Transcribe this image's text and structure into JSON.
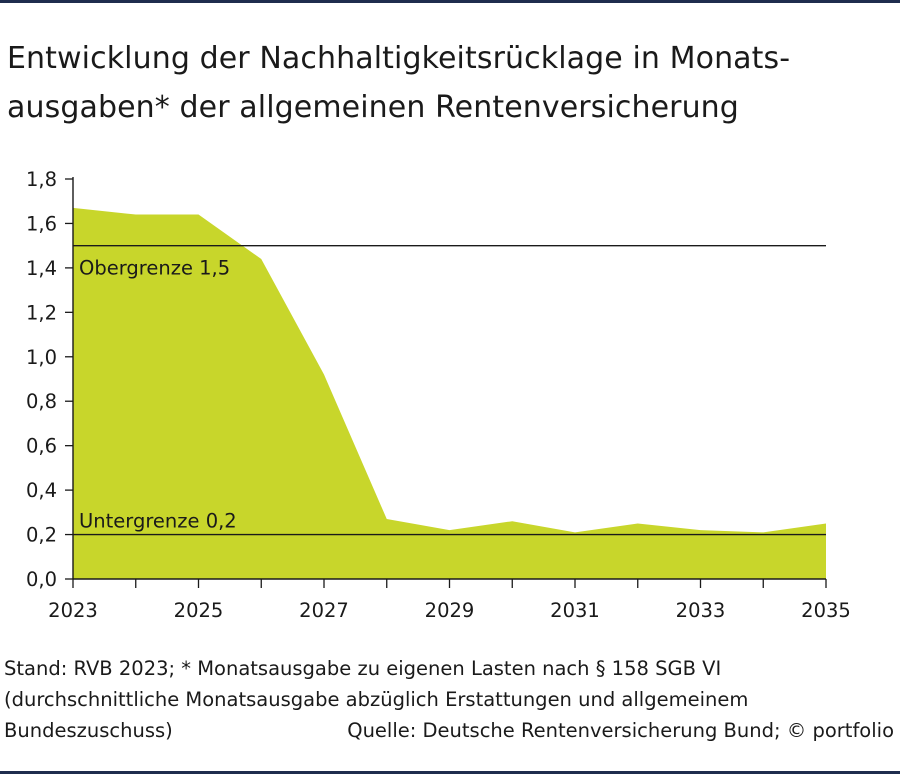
{
  "title_lines": [
    "Entwicklung der Nachhaltigkeitsrücklage in Monats-",
    "ausgaben* der allgemeinen Rentenversicherung"
  ],
  "chart_data": {
    "type": "area",
    "title": "Entwicklung der Nachhaltigkeitsrücklage in Monatsausgaben* der allgemeinen Rentenversicherung",
    "x": [
      2023,
      2024,
      2025,
      2026,
      2027,
      2028,
      2029,
      2030,
      2031,
      2032,
      2033,
      2034,
      2035
    ],
    "values": [
      1.67,
      1.64,
      1.64,
      1.44,
      0.92,
      0.27,
      0.22,
      0.26,
      0.21,
      0.25,
      0.22,
      0.21,
      0.25
    ],
    "xlim": [
      2023,
      2035
    ],
    "ylim": [
      0,
      1.8
    ],
    "x_tick_values": [
      2023,
      2025,
      2027,
      2029,
      2031,
      2033,
      2035
    ],
    "x_tick_labels": [
      "2023",
      "2025",
      "2027",
      "2029",
      "2031",
      "2033",
      "2035"
    ],
    "y_tick_values": [
      0,
      0.2,
      0.4,
      0.6,
      0.8,
      1.0,
      1.2,
      1.4,
      1.6,
      1.8
    ],
    "y_tick_labels": [
      "0,0",
      "0,2",
      "0,4",
      "0,6",
      "0,8",
      "1,0",
      "1,2",
      "1,4",
      "1,6",
      "1,8"
    ],
    "fill_color": "#c8d62b",
    "reference_lines": [
      {
        "value": 1.5,
        "label": "Obergrenze 1,5"
      },
      {
        "value": 0.2,
        "label": "Untergrenze 0,2"
      }
    ],
    "grid": false
  },
  "footer": {
    "line1": "Stand: RVB 2023; * Monatsausgabe zu eigenen Lasten nach § 158 SGB VI",
    "line2": "(durchschnittliche Monatsausgabe abzüglich Erstattungen und allgemeinem",
    "line3_left": "Bundeszuschuss)",
    "line3_right": "Quelle: Deutsche Rentenversicherung Bund; © portfolio"
  }
}
